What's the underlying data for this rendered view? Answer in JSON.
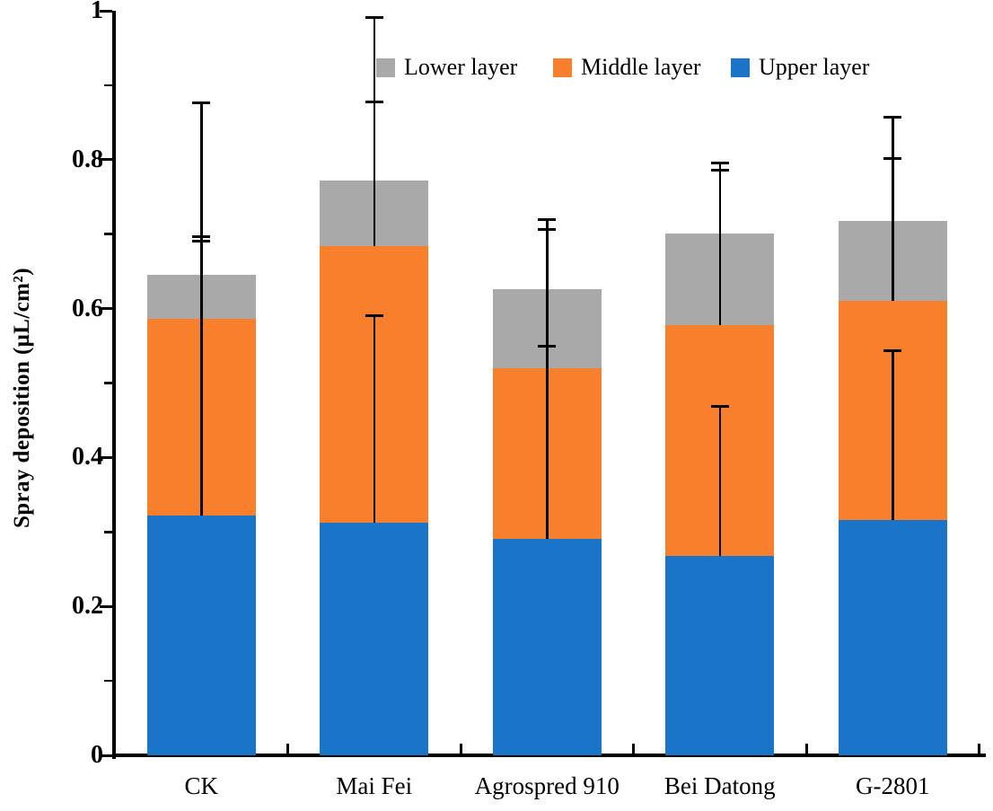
{
  "figure": {
    "background": "#ffffff",
    "axis_color": "#000000"
  },
  "chart_data": {
    "type": "bar",
    "stacked": true,
    "title": "",
    "xlabel": "",
    "ylabel": "Spray deposition (μL/cm²)",
    "ylim": [
      0,
      1
    ],
    "grid": false,
    "legend_position": "top-inside",
    "error_bar_direction": "plus",
    "categories": [
      "CK",
      "Mai Fei",
      "Agrospred 910",
      "Bei Datong",
      "G-2801"
    ],
    "series": [
      {
        "name": "Upper layer",
        "color": "#1a74c8",
        "values": [
          0.322,
          0.313,
          0.291,
          0.268,
          0.316
        ],
        "error_up": [
          0.375,
          0.277,
          0.258,
          0.201,
          0.228
        ]
      },
      {
        "name": "Middle layer",
        "color": "#f8802c",
        "values": [
          0.264,
          0.371,
          0.229,
          0.31,
          0.294
        ],
        "error_up": [
          0.104,
          0.193,
          0.186,
          0.208,
          0.191
        ]
      },
      {
        "name": "Lower layer",
        "color": "#a9a9a9",
        "values": [
          0.059,
          0.088,
          0.106,
          0.123,
          0.108
        ],
        "error_up": [
          0.231,
          0.219,
          0.093,
          0.095,
          0.139
        ]
      }
    ],
    "stack_order_bottom_to_top": [
      "Upper layer",
      "Middle layer",
      "Lower layer"
    ],
    "yticks_major": [
      0,
      0.2,
      0.4,
      0.6,
      0.8,
      1
    ],
    "ytick_labels": [
      "0",
      "0.2",
      "0.4",
      "0.6",
      "0.8",
      "1"
    ],
    "yticks_minor": [
      0.1,
      0.3,
      0.5,
      0.7,
      0.9
    ]
  },
  "legend": {
    "items": [
      {
        "label": "Lower layer",
        "color": "#a9a9a9"
      },
      {
        "label": "Middle layer",
        "color": "#f8802c"
      },
      {
        "label": "Upper layer",
        "color": "#1a74c8"
      }
    ]
  }
}
